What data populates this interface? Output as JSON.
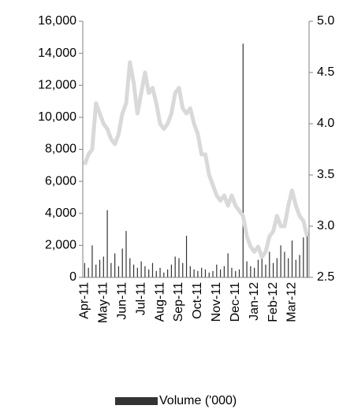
{
  "chart_data": {
    "type": "bar",
    "categories": [
      "Apr-11",
      null,
      null,
      null,
      null,
      "May-11",
      null,
      null,
      null,
      null,
      "Jun-11",
      null,
      null,
      null,
      null,
      "Jul-11",
      null,
      null,
      null,
      null,
      "Aug-11",
      null,
      null,
      null,
      null,
      "Sep-11",
      null,
      null,
      null,
      null,
      "Oct-11",
      null,
      null,
      null,
      null,
      "Nov-11",
      null,
      null,
      null,
      null,
      "Dec-11",
      null,
      null,
      null,
      null,
      "Jan-12",
      null,
      null,
      null,
      null,
      "Feb-12",
      null,
      null,
      null,
      null,
      "Mar-12",
      null,
      null,
      null,
      null
    ],
    "series": [
      {
        "name": "Volume ('000)",
        "type": "bar",
        "color": "#333333",
        "values": [
          900,
          600,
          2000,
          800,
          1100,
          1300,
          4200,
          900,
          1500,
          700,
          1800,
          2900,
          1200,
          800,
          600,
          1000,
          700,
          500,
          900,
          400,
          600,
          300,
          500,
          800,
          1300,
          1200,
          900,
          2600,
          700,
          500,
          400,
          600,
          500,
          300,
          400,
          800,
          500,
          700,
          1500,
          600,
          400,
          500,
          14600,
          1000,
          700,
          600,
          1100,
          1300,
          800,
          1600,
          900,
          1200,
          2000,
          1600,
          1200,
          2300,
          1100,
          1400,
          2500,
          2600
        ]
      },
      {
        "type": "line",
        "color": "#d9d9d9",
        "axis": "y2",
        "values": [
          3.6,
          3.7,
          3.75,
          4.2,
          4.1,
          4.0,
          3.95,
          3.85,
          3.8,
          3.9,
          4.1,
          4.2,
          4.6,
          4.4,
          4.1,
          4.3,
          4.5,
          4.3,
          4.35,
          4.2,
          4.0,
          3.95,
          4.0,
          4.1,
          4.3,
          4.35,
          4.15,
          4.1,
          4.15,
          4.0,
          3.9,
          3.7,
          3.7,
          3.5,
          3.4,
          3.3,
          3.25,
          3.3,
          3.2,
          3.3,
          3.2,
          3.15,
          3.1,
          2.9,
          2.8,
          2.75,
          2.8,
          2.7,
          2.75,
          2.9,
          2.95,
          3.1,
          3.0,
          3.0,
          3.2,
          3.35,
          3.2,
          3.1,
          3.05,
          2.9
        ]
      }
    ],
    "ylim": [
      0,
      16000
    ],
    "yticks": [
      0,
      {
        "value": 2000,
        "label": "2,000"
      },
      {
        "value": 4000,
        "label": "4,000"
      },
      {
        "value": 6000,
        "label": "6,000"
      },
      {
        "value": 8000,
        "label": "8,000"
      },
      {
        "value": 10000,
        "label": "10,000"
      },
      {
        "value": 12000,
        "label": "12,000"
      },
      {
        "value": 14000,
        "label": "14,000"
      },
      {
        "value": 16000,
        "label": "16,000"
      }
    ],
    "y2lim": [
      2.5,
      5.0
    ],
    "y2ticks": [
      2.5,
      {
        "value": 3,
        "label": "3.0"
      },
      3.5,
      {
        "value": 4,
        "label": "4.0"
      },
      4.5,
      {
        "value": 5,
        "label": "5.0"
      }
    ],
    "legend": "bottom"
  }
}
